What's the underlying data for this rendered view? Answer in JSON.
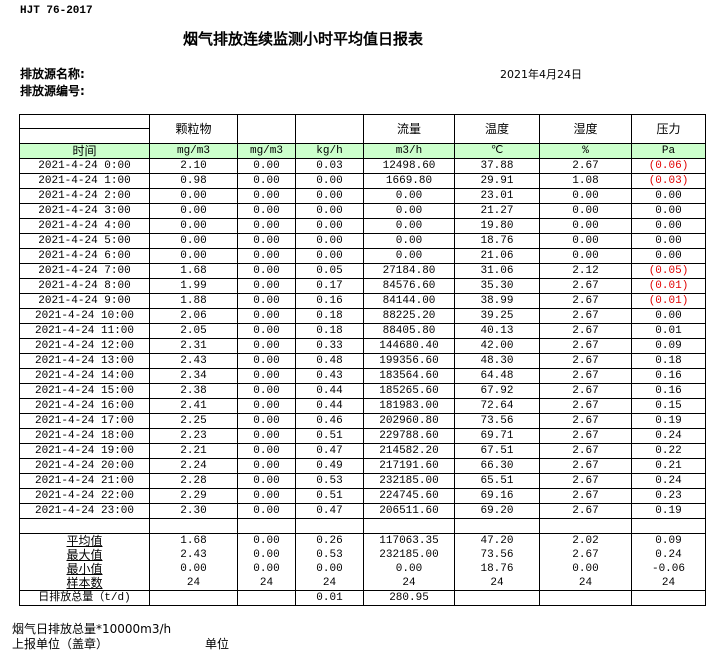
{
  "header": {
    "standard": "HJT  76-2017",
    "title": "烟气排放连续监测小时平均值日报表",
    "source_name_label": "排放源名称:",
    "source_id_label": "排放源编号:",
    "date": "2021年4月24日"
  },
  "table": {
    "columns": [
      "",
      "颗粒物",
      "",
      "",
      "流量",
      "温度",
      "湿度",
      "压力"
    ],
    "units": [
      "时间",
      "mg/m3",
      "mg/m3",
      "kg/h",
      "m3/h",
      "℃",
      "%",
      "Pa"
    ],
    "rows": [
      [
        "2021-4-24 0:00",
        "2.10",
        "0.00",
        "0.03",
        "12498.60",
        "37.88",
        "2.67",
        "(0.06)"
      ],
      [
        "2021-4-24 1:00",
        "0.98",
        "0.00",
        "0.00",
        "1669.80",
        "29.91",
        "1.08",
        "(0.03)"
      ],
      [
        "2021-4-24 2:00",
        "0.00",
        "0.00",
        "0.00",
        "0.00",
        "23.01",
        "0.00",
        "0.00"
      ],
      [
        "2021-4-24 3:00",
        "0.00",
        "0.00",
        "0.00",
        "0.00",
        "21.27",
        "0.00",
        "0.00"
      ],
      [
        "2021-4-24 4:00",
        "0.00",
        "0.00",
        "0.00",
        "0.00",
        "19.80",
        "0.00",
        "0.00"
      ],
      [
        "2021-4-24 5:00",
        "0.00",
        "0.00",
        "0.00",
        "0.00",
        "18.76",
        "0.00",
        "0.00"
      ],
      [
        "2021-4-24 6:00",
        "0.00",
        "0.00",
        "0.00",
        "0.00",
        "21.06",
        "0.00",
        "0.00"
      ],
      [
        "2021-4-24 7:00",
        "1.68",
        "0.00",
        "0.05",
        "27184.80",
        "31.06",
        "2.12",
        "(0.05)"
      ],
      [
        "2021-4-24 8:00",
        "1.99",
        "0.00",
        "0.17",
        "84576.60",
        "35.30",
        "2.67",
        "(0.01)"
      ],
      [
        "2021-4-24 9:00",
        "1.88",
        "0.00",
        "0.16",
        "84144.00",
        "38.99",
        "2.67",
        "(0.01)"
      ],
      [
        "2021-4-24 10:00",
        "2.06",
        "0.00",
        "0.18",
        "88225.20",
        "39.25",
        "2.67",
        "0.00"
      ],
      [
        "2021-4-24 11:00",
        "2.05",
        "0.00",
        "0.18",
        "88405.80",
        "40.13",
        "2.67",
        "0.01"
      ],
      [
        "2021-4-24 12:00",
        "2.31",
        "0.00",
        "0.33",
        "144680.40",
        "42.00",
        "2.67",
        "0.09"
      ],
      [
        "2021-4-24 13:00",
        "2.43",
        "0.00",
        "0.48",
        "199356.60",
        "48.30",
        "2.67",
        "0.18"
      ],
      [
        "2021-4-24 14:00",
        "2.34",
        "0.00",
        "0.43",
        "183564.60",
        "64.48",
        "2.67",
        "0.16"
      ],
      [
        "2021-4-24 15:00",
        "2.38",
        "0.00",
        "0.44",
        "185265.60",
        "67.92",
        "2.67",
        "0.16"
      ],
      [
        "2021-4-24 16:00",
        "2.41",
        "0.00",
        "0.44",
        "181983.00",
        "72.64",
        "2.67",
        "0.15"
      ],
      [
        "2021-4-24 17:00",
        "2.25",
        "0.00",
        "0.46",
        "202960.80",
        "73.56",
        "2.67",
        "0.19"
      ],
      [
        "2021-4-24 18:00",
        "2.23",
        "0.00",
        "0.51",
        "229788.60",
        "69.71",
        "2.67",
        "0.24"
      ],
      [
        "2021-4-24 19:00",
        "2.21",
        "0.00",
        "0.47",
        "214582.20",
        "67.51",
        "2.67",
        "0.22"
      ],
      [
        "2021-4-24 20:00",
        "2.24",
        "0.00",
        "0.49",
        "217191.60",
        "66.30",
        "2.67",
        "0.21"
      ],
      [
        "2021-4-24 21:00",
        "2.28",
        "0.00",
        "0.53",
        "232185.00",
        "65.51",
        "2.67",
        "0.24"
      ],
      [
        "2021-4-24 22:00",
        "2.29",
        "0.00",
        "0.51",
        "224745.60",
        "69.16",
        "2.67",
        "0.23"
      ],
      [
        "2021-4-24 23:00",
        "2.30",
        "0.00",
        "0.47",
        "206511.60",
        "69.20",
        "2.67",
        "0.19"
      ]
    ],
    "summary": [
      [
        "平均值",
        "1.68",
        "0.00",
        "0.26",
        "117063.35",
        "47.20",
        "2.02",
        "0.09"
      ],
      [
        "最大值",
        "2.43",
        "0.00",
        "0.53",
        "232185.00",
        "73.56",
        "2.67",
        "0.24"
      ],
      [
        "最小值",
        "0.00",
        "0.00",
        "0.00",
        "0.00",
        "18.76",
        "0.00",
        "-0.06"
      ],
      [
        "样本数",
        "24",
        "24",
        "24",
        "24",
        "24",
        "24",
        "24"
      ]
    ],
    "total": [
      "日排放总量（t/d)",
      "",
      "",
      "0.01",
      "280.95",
      "",
      "",
      ""
    ]
  },
  "footer": {
    "flue_total": "烟气日排放总量*10000m3/h",
    "reporter": "上报单位（盖章）",
    "unit": "单位"
  },
  "colors": {
    "unit_row_bg": "#ccffcc",
    "negative_text": "#e00000"
  }
}
